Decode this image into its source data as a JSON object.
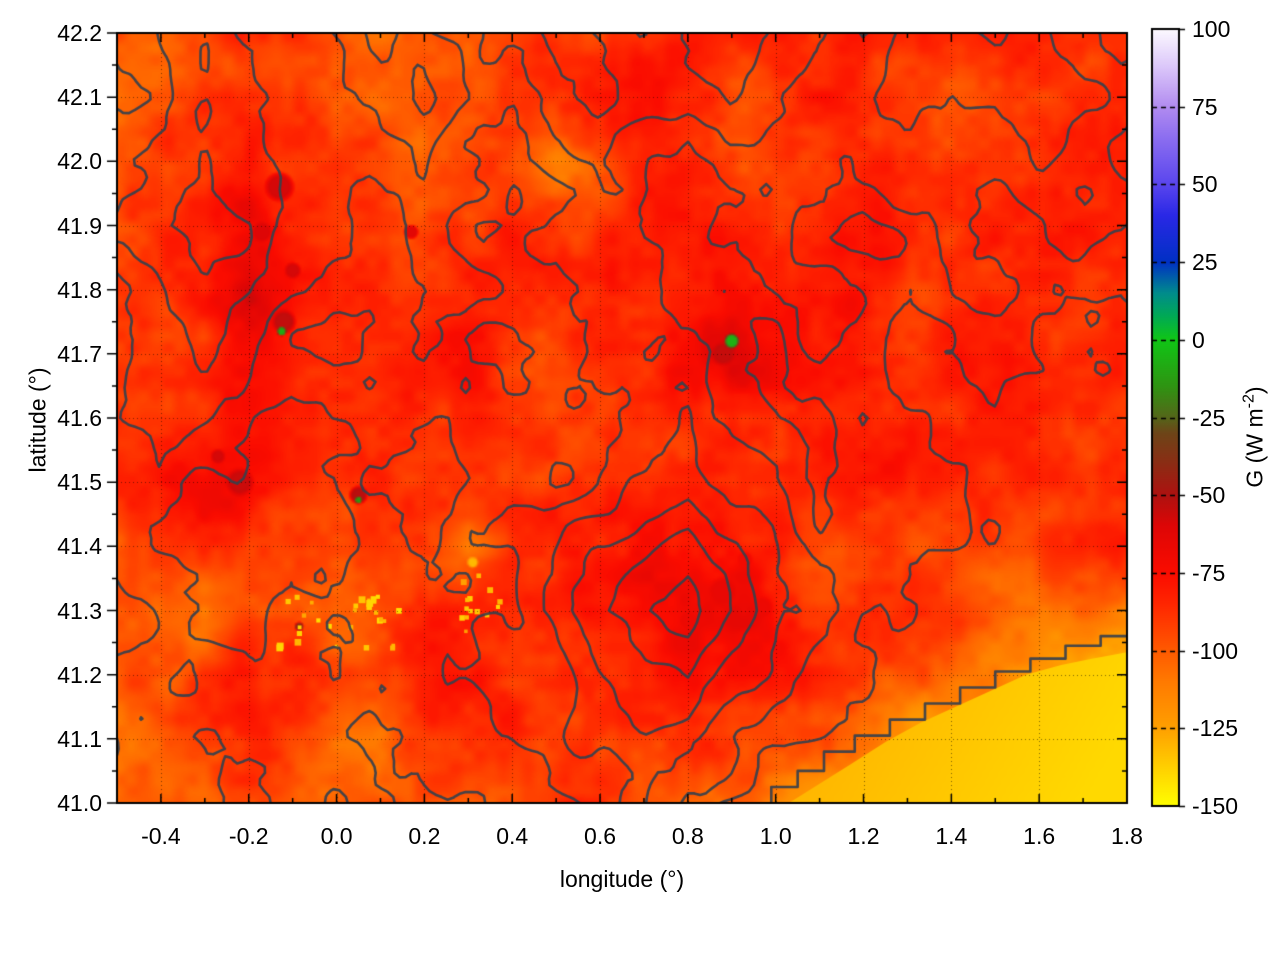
{
  "axes": {
    "xlabel": "longitude (°)",
    "ylabel": "latitude (°)"
  },
  "colorbar": {
    "label_main": "G (W m",
    "label_sup": "-2",
    "label_close": ")"
  },
  "chart_data": {
    "type": "heatmap",
    "xlabel": "longitude (°)",
    "ylabel": "latitude (°)",
    "colorbar_label": "G (W m-2)",
    "x_range": [
      -0.5,
      1.8
    ],
    "y_range": [
      41.0,
      42.2
    ],
    "z_range": [
      -150,
      100
    ],
    "x_ticks": [
      -0.4,
      -0.2,
      0.0,
      0.2,
      0.4,
      0.6,
      0.8,
      1.0,
      1.2,
      1.4,
      1.6,
      1.8
    ],
    "x_tick_labels": [
      "-0.4",
      "-0.2",
      "0.0",
      "0.2",
      "0.4",
      "0.6",
      "0.8",
      "1.0",
      "1.2",
      "1.4",
      "1.6",
      "1.8"
    ],
    "y_ticks": [
      41.0,
      41.1,
      41.2,
      41.3,
      41.4,
      41.5,
      41.6,
      41.7,
      41.8,
      41.9,
      42.0,
      42.1,
      42.2
    ],
    "y_tick_labels": [
      "41.0",
      "41.1",
      "41.2",
      "41.3",
      "41.4",
      "41.5",
      "41.6",
      "41.7",
      "41.8",
      "41.9",
      "42.0",
      "42.1",
      "42.2"
    ],
    "cb_ticks": [
      100,
      75,
      50,
      25,
      0,
      -25,
      -50,
      -75,
      -100,
      -125,
      -150
    ],
    "cb_tick_labels": [
      "100",
      "75",
      "50",
      "25",
      "0",
      "-25",
      "-50",
      "-75",
      "-100",
      "-125",
      "-150"
    ],
    "grid_on": true,
    "legend": "colorbar right",
    "palette": [
      {
        "v": -150,
        "c": "#ffff00"
      },
      {
        "v": -125,
        "c": "#ffa000"
      },
      {
        "v": -110,
        "c": "#ff7a00"
      },
      {
        "v": -100,
        "c": "#ff5a00"
      },
      {
        "v": -85,
        "c": "#ff2600"
      },
      {
        "v": -75,
        "c": "#fb0c00"
      },
      {
        "v": -60,
        "c": "#de0606"
      },
      {
        "v": -50,
        "c": "#ae1210"
      },
      {
        "v": -40,
        "c": "#8c2c14"
      },
      {
        "v": -30,
        "c": "#6d4518"
      },
      {
        "v": -25,
        "c": "#55661a"
      },
      {
        "v": -15,
        "c": "#2f9412"
      },
      {
        "v": 0,
        "c": "#10c616"
      },
      {
        "v": 8,
        "c": "#00a858"
      },
      {
        "v": 15,
        "c": "#008c8c"
      },
      {
        "v": 25,
        "c": "#0030c4"
      },
      {
        "v": 40,
        "c": "#2a28e6"
      },
      {
        "v": 50,
        "c": "#5a46ee"
      },
      {
        "v": 65,
        "c": "#8c6ef0"
      },
      {
        "v": 75,
        "c": "#b28cf0"
      },
      {
        "v": 88,
        "c": "#dcc8fa"
      },
      {
        "v": 100,
        "c": "#fdfaff"
      }
    ],
    "contour_color": "#39414b",
    "grid_color": "rgba(0,0,0,0.5)",
    "frame_color": "#000000",
    "grid_lon": [
      -0.5,
      -0.4,
      -0.3,
      -0.2,
      -0.1,
      0.0,
      0.1,
      0.2,
      0.3,
      0.4,
      0.5,
      0.6,
      0.7,
      0.8,
      0.9,
      1.0,
      1.1,
      1.2,
      1.3,
      1.4,
      1.5,
      1.6,
      1.7,
      1.8
    ],
    "grid_lat": [
      42.2,
      42.1,
      42.0,
      41.9,
      41.8,
      41.7,
      41.6,
      41.5,
      41.4,
      41.3,
      41.2,
      41.1,
      41.0
    ],
    "g_values": [
      [
        -102,
        -100,
        -95,
        -90,
        -95,
        -104,
        -102,
        -96,
        -100,
        -93,
        -88,
        -92,
        -90,
        -86,
        -90,
        -88,
        -86,
        -88,
        -90,
        -92,
        -90,
        -88,
        -90,
        -92
      ],
      [
        -105,
        -99,
        -90,
        -86,
        -90,
        -96,
        -104,
        -98,
        -93,
        -89,
        -96,
        -92,
        -86,
        -84,
        -88,
        -86,
        -84,
        -86,
        -88,
        -90,
        -88,
        -86,
        -88,
        -90
      ],
      [
        -98,
        -92,
        -86,
        -72,
        -84,
        -90,
        -95,
        -99,
        -91,
        -86,
        -104,
        -96,
        -88,
        -85,
        -84,
        -86,
        -88,
        -84,
        -86,
        -88,
        -90,
        -92,
        -88,
        -86
      ],
      [
        -95,
        -89,
        -82,
        -64,
        -80,
        -88,
        -92,
        -94,
        -88,
        -84,
        -86,
        -90,
        -86,
        -82,
        -86,
        -88,
        -84,
        -80,
        -84,
        -86,
        -88,
        -90,
        -86,
        -88
      ],
      [
        -93,
        -91,
        -84,
        -60,
        -78,
        -86,
        -94,
        -90,
        -86,
        -88,
        -84,
        -86,
        -88,
        -84,
        -80,
        -84,
        -86,
        -82,
        -86,
        -88,
        -92,
        -88,
        -86,
        -90
      ],
      [
        -96,
        -93,
        -89,
        -74,
        -86,
        -90,
        -88,
        -86,
        -84,
        -86,
        -88,
        -84,
        -86,
        -78,
        -66,
        -82,
        -86,
        -88,
        -90,
        -86,
        -88,
        -92,
        -88,
        -86
      ],
      [
        -93,
        -89,
        -86,
        -82,
        -88,
        -92,
        -86,
        -88,
        -86,
        -82,
        -86,
        -88,
        -84,
        -86,
        -82,
        -86,
        -88,
        -86,
        -84,
        -88,
        -86,
        -88,
        -92,
        -88
      ],
      [
        -91,
        -86,
        -70,
        -78,
        -86,
        -89,
        -91,
        -86,
        -88,
        -86,
        -84,
        -86,
        -88,
        -84,
        -86,
        -88,
        -86,
        -88,
        -86,
        -84,
        -88,
        -86,
        -88,
        -90
      ],
      [
        -96,
        -91,
        -86,
        -89,
        -93,
        -89,
        -86,
        -91,
        -108,
        -89,
        -86,
        -88,
        -84,
        -80,
        -78,
        -82,
        -86,
        -88,
        -86,
        -88,
        -92,
        -88,
        -86,
        -88
      ],
      [
        -99,
        -106,
        -114,
        -100,
        -96,
        -108,
        -93,
        -89,
        -91,
        -86,
        -88,
        -76,
        -68,
        -66,
        -73,
        -82,
        -88,
        -86,
        -88,
        -92,
        -96,
        -98,
        -100,
        -112
      ],
      [
        -96,
        -93,
        -89,
        -86,
        -91,
        -96,
        -89,
        -86,
        -89,
        -91,
        -86,
        -82,
        -77,
        -74,
        -80,
        -86,
        -91,
        -94,
        -98,
        -103,
        -110,
        -118,
        -128,
        -130
      ],
      [
        -101,
        -96,
        -91,
        -89,
        -96,
        -101,
        -106,
        -96,
        -91,
        -89,
        -93,
        -89,
        -86,
        -89,
        -93,
        -96,
        -102,
        -110,
        -120,
        -128,
        -130,
        -129,
        -131,
        -130
      ],
      [
        -106,
        -101,
        -96,
        -93,
        -101,
        -109,
        -101,
        -96,
        -93,
        -96,
        -91,
        -93,
        -96,
        -101,
        -100,
        -112,
        -126,
        -130,
        -129,
        -131,
        -130,
        -129,
        -131,
        -130
      ]
    ],
    "spots": [
      [
        -0.13,
        41.96,
        16,
        -58
      ],
      [
        -0.17,
        41.89,
        11,
        -60
      ],
      [
        -0.1,
        41.83,
        9,
        -58
      ],
      [
        -0.12,
        41.75,
        13,
        -54
      ],
      [
        0.17,
        41.89,
        8,
        -62
      ],
      [
        -0.22,
        41.5,
        15,
        -56
      ],
      [
        -0.27,
        41.54,
        8,
        -58
      ],
      [
        0.05,
        41.48,
        10,
        -52
      ],
      [
        0.88,
        41.7,
        13,
        -55
      ],
      [
        0.88,
        41.33,
        15,
        -66
      ],
      [
        0.97,
        41.305,
        11,
        -68
      ],
      [
        0.8,
        41.285,
        9,
        -68
      ],
      [
        0.93,
        41.38,
        8,
        -70
      ],
      [
        -0.085,
        41.275,
        5,
        -40
      ],
      [
        0.31,
        41.375,
        6,
        -132
      ],
      [
        -0.125,
        41.735,
        5,
        -8
      ],
      [
        0.05,
        41.472,
        4,
        -14
      ],
      [
        0.9,
        41.72,
        8,
        -6
      ]
    ],
    "speckles": [
      {
        "lon": 0.02,
        "lat": 41.285,
        "dlon": 0.16,
        "dlat": 0.04,
        "n": 30,
        "v1": -126,
        "v2": -142,
        "s1": 3,
        "s2": 7
      },
      {
        "lon": 0.33,
        "lat": 41.315,
        "dlon": 0.06,
        "dlat": 0.045,
        "n": 14,
        "v1": -124,
        "v2": -140,
        "s1": 3,
        "s2": 6
      }
    ],
    "sea": {
      "polygon": [
        [
          1.03,
          41.0
        ],
        [
          1.1,
          41.03
        ],
        [
          1.17,
          41.06
        ],
        [
          1.25,
          41.095
        ],
        [
          1.33,
          41.125
        ],
        [
          1.41,
          41.15
        ],
        [
          1.49,
          41.175
        ],
        [
          1.57,
          41.2
        ],
        [
          1.65,
          41.215
        ],
        [
          1.72,
          41.225
        ],
        [
          1.8,
          41.235
        ],
        [
          1.8,
          41.0
        ]
      ],
      "colors": [
        "#ffac00",
        "#ffd900"
      ],
      "contour": [
        [
          0.99,
          41.0
        ],
        [
          0.99,
          41.025
        ],
        [
          1.05,
          41.025
        ],
        [
          1.05,
          41.05
        ],
        [
          1.11,
          41.05
        ],
        [
          1.11,
          41.08
        ],
        [
          1.18,
          41.08
        ],
        [
          1.18,
          41.105
        ],
        [
          1.26,
          41.105
        ],
        [
          1.26,
          41.13
        ],
        [
          1.34,
          41.13
        ],
        [
          1.34,
          41.155
        ],
        [
          1.42,
          41.155
        ],
        [
          1.42,
          41.18
        ],
        [
          1.5,
          41.18
        ],
        [
          1.5,
          41.205
        ],
        [
          1.58,
          41.205
        ],
        [
          1.58,
          41.225
        ],
        [
          1.66,
          41.225
        ],
        [
          1.66,
          41.245
        ],
        [
          1.74,
          41.245
        ],
        [
          1.74,
          41.26
        ],
        [
          1.8,
          41.26
        ]
      ]
    },
    "contour_levels": [
      0.8,
      1.3,
      1.9,
      2.6,
      3.3,
      4.1
    ],
    "elevation": [
      [
        1.5,
        1.9,
        2.3,
        1.7,
        1.3,
        2.1,
        2.7,
        2.1,
        1.5,
        2.3,
        2.9,
        2.3,
        1.7,
        2.5,
        3.1,
        2.3,
        1.7,
        1.3,
        1.9,
        2.5,
        2.9,
        2.3,
        1.7,
        1.3
      ],
      [
        1.1,
        1.5,
        2.5,
        2.1,
        1.3,
        1.5,
        2.3,
        2.9,
        1.9,
        1.3,
        2.1,
        2.7,
        1.9,
        2.1,
        2.7,
        2.1,
        1.5,
        1.9,
        2.3,
        1.7,
        2.1,
        2.7,
        2.1,
        1.5
      ],
      [
        1.5,
        2.1,
        2.7,
        2.3,
        1.5,
        1.1,
        1.7,
        2.3,
        1.5,
        1.1,
        1.7,
        2.1,
        1.5,
        1.1,
        1.7,
        1.5,
        1.1,
        1.5,
        1.9,
        1.3,
        1.5,
        2.1,
        1.7,
        1.1
      ],
      [
        1.9,
        2.5,
        2.9,
        2.5,
        1.7,
        1.3,
        0.9,
        1.5,
        1.1,
        0.8,
        1.3,
        1.7,
        1.1,
        0.9,
        1.3,
        1.7,
        1.1,
        0.8,
        1.1,
        1.5,
        1.1,
        1.3,
        1.9,
        1.3
      ],
      [
        1.3,
        1.9,
        2.5,
        2.1,
        1.3,
        0.9,
        0.8,
        1.1,
        1.5,
        1.1,
        0.9,
        1.3,
        1.7,
        1.1,
        0.8,
        1.1,
        1.5,
        1.1,
        0.8,
        1.1,
        1.5,
        1.1,
        0.9,
        0.7
      ],
      [
        0.9,
        1.5,
        2.1,
        1.5,
        0.9,
        0.7,
        0.9,
        1.3,
        0.9,
        0.8,
        1.1,
        1.5,
        1.1,
        1.5,
        1.1,
        0.9,
        1.3,
        0.9,
        0.7,
        0.9,
        1.3,
        0.9,
        0.7,
        0.5
      ],
      [
        1.3,
        1.7,
        1.3,
        0.8,
        0.6,
        0.8,
        1.1,
        0.9,
        0.7,
        0.9,
        1.3,
        1.1,
        1.5,
        1.9,
        1.3,
        0.9,
        0.7,
        1.1,
        0.8,
        0.6,
        0.9,
        0.7,
        0.5,
        0.4
      ],
      [
        0.9,
        1.1,
        0.8,
        0.5,
        0.4,
        0.6,
        0.9,
        0.7,
        0.9,
        1.3,
        0.9,
        1.3,
        1.9,
        2.3,
        1.7,
        1.3,
        0.9,
        0.7,
        0.9,
        0.7,
        0.5,
        0.7,
        0.5,
        0.3
      ],
      [
        1.1,
        0.8,
        0.5,
        0.4,
        0.6,
        0.9,
        0.7,
        0.9,
        1.3,
        1.1,
        1.7,
        2.5,
        3.1,
        3.7,
        2.7,
        1.9,
        1.1,
        0.9,
        0.6,
        0.8,
        0.6,
        0.4,
        0.3,
        0.2
      ],
      [
        1.5,
        1.1,
        0.8,
        0.6,
        0.9,
        1.1,
        0.9,
        1.3,
        0.9,
        1.3,
        2.1,
        3.1,
        3.9,
        4.5,
        3.3,
        2.1,
        1.3,
        0.9,
        0.7,
        0.5,
        0.4,
        0.3,
        0.2,
        0.1
      ],
      [
        1.1,
        1.3,
        0.9,
        0.8,
        1.1,
        0.9,
        1.3,
        0.9,
        1.3,
        1.7,
        1.3,
        2.3,
        3.1,
        3.5,
        2.5,
        1.5,
        0.9,
        0.7,
        0.5,
        0.3,
        0.2,
        0.15,
        0.1,
        0.05
      ],
      [
        1.3,
        0.9,
        1.3,
        1.1,
        0.8,
        1.1,
        1.5,
        1.1,
        0.9,
        1.3,
        1.7,
        1.9,
        2.5,
        1.9,
        1.3,
        0.9,
        0.6,
        0.4,
        0.25,
        0.15,
        0.1,
        0.05,
        0.05,
        0.05
      ],
      [
        1.1,
        1.3,
        1.1,
        1.5,
        1.1,
        0.9,
        1.1,
        1.5,
        1.1,
        0.9,
        1.1,
        1.5,
        1.9,
        1.3,
        0.9,
        0.6,
        0.4,
        0.25,
        0.15,
        0.1,
        0.05,
        0.05,
        0.05,
        0.05
      ]
    ],
    "seed": 12345
  }
}
